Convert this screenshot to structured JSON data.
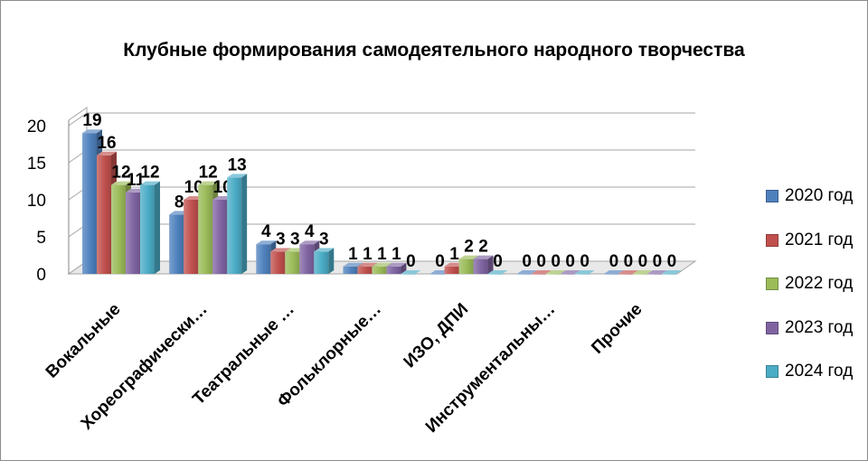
{
  "chart_data": {
    "type": "bar",
    "title": "Клубные формирования самодеятельного народного творчества",
    "categories": [
      "Вокальные",
      "Хореографически…",
      "Театральные …",
      "Фольклорные…",
      "ИЗО, ДПИ",
      "Инструментальны…",
      "Прочие"
    ],
    "series": [
      {
        "name": "2020 год",
        "color": "#4f81bd",
        "values": [
          19,
          8,
          4,
          1,
          0,
          0,
          0
        ]
      },
      {
        "name": "2021 год",
        "color": "#c0504d",
        "values": [
          16,
          10,
          3,
          1,
          1,
          0,
          0
        ]
      },
      {
        "name": "2022 год",
        "color": "#9bbb59",
        "values": [
          12,
          12,
          3,
          1,
          2,
          0,
          0
        ]
      },
      {
        "name": "2023 год",
        "color": "#8064a2",
        "values": [
          11,
          10,
          4,
          1,
          2,
          0,
          0
        ]
      },
      {
        "name": "2024 год",
        "color": "#4bacc6",
        "values": [
          12,
          13,
          3,
          0,
          0,
          0,
          0
        ]
      }
    ],
    "y_ticks": [
      "0",
      "5",
      "10",
      "15",
      "20"
    ],
    "ylim": [
      0,
      20
    ],
    "grid": true,
    "three_d": true,
    "data_labels": true,
    "legend_position": "right"
  }
}
